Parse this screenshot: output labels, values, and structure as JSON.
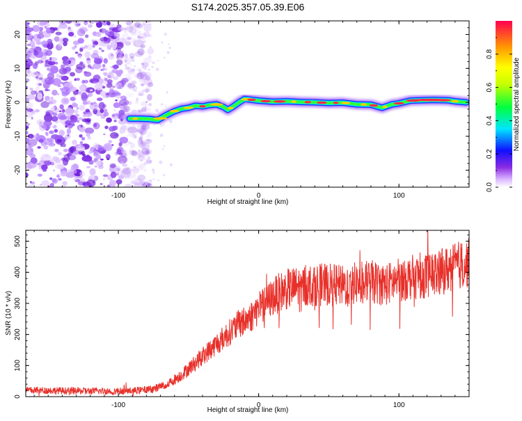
{
  "title": "S174.2025.357.05.39.E06",
  "chart_data": [
    {
      "type": "heatmap",
      "xlabel": "Height of straight line (km)",
      "ylabel": "Frequency (Hz)",
      "xlim": [
        -166,
        150
      ],
      "ylim": [
        -25,
        24
      ],
      "xticks": [
        -100,
        0,
        100
      ],
      "yticks": [
        -20,
        -10,
        0,
        10,
        20
      ],
      "noise_region_x": [
        -166,
        -85
      ],
      "ridge": {
        "x": [
          -92,
          -85,
          -78,
          -72,
          -66,
          -60,
          -55,
          -50,
          -45,
          -40,
          -35,
          -30,
          -25,
          -22,
          -18,
          -14,
          -10,
          -6,
          -2,
          0,
          10,
          20,
          30,
          40,
          50,
          60,
          70,
          80,
          88,
          95,
          100,
          108,
          115,
          125,
          135,
          140,
          148
        ],
        "y": [
          -4.8,
          -4.8,
          -4.9,
          -5.2,
          -3.8,
          -2.6,
          -1.9,
          -1.6,
          -1.0,
          -1.2,
          -0.8,
          -0.6,
          -1.4,
          -2.2,
          -1.2,
          0.0,
          1.0,
          0.8,
          0.6,
          0.5,
          0.2,
          0.3,
          0.1,
          0.0,
          -0.2,
          -0.1,
          -0.6,
          -0.7,
          -1.6,
          -0.6,
          -0.3,
          0.5,
          0.6,
          0.7,
          0.6,
          0.3,
          0.0
        ]
      },
      "colorbar": {
        "label": "Normalized spectral amplitude",
        "range": [
          0,
          1
        ],
        "ticks": [
          0.0,
          0.2,
          0.4,
          0.6,
          0.8
        ]
      }
    },
    {
      "type": "line",
      "xlabel": "Height of straight line (km)",
      "ylabel": "SNR (10 * v/v)",
      "xlim": [
        -166,
        150
      ],
      "ylim": [
        0,
        535
      ],
      "xticks": [
        -100,
        0,
        100
      ],
      "yticks": [
        0,
        100,
        200,
        300,
        400,
        500
      ],
      "series": [
        {
          "name": "SNR",
          "color": "#e8302a",
          "x": [
            -166,
            -150,
            -130,
            -110,
            -95,
            -85,
            -75,
            -65,
            -55,
            -45,
            -35,
            -25,
            -15,
            -5,
            0,
            5,
            10,
            15,
            20,
            25,
            30,
            40,
            50,
            60,
            70,
            80,
            90,
            100,
            110,
            120,
            130,
            140,
            150
          ],
          "y": [
            20,
            20,
            18,
            18,
            18,
            20,
            25,
            40,
            70,
            110,
            150,
            190,
            230,
            260,
            285,
            300,
            320,
            335,
            345,
            350,
            355,
            360,
            360,
            355,
            365,
            370,
            360,
            375,
            385,
            390,
            400,
            420,
            430
          ]
        }
      ]
    }
  ]
}
